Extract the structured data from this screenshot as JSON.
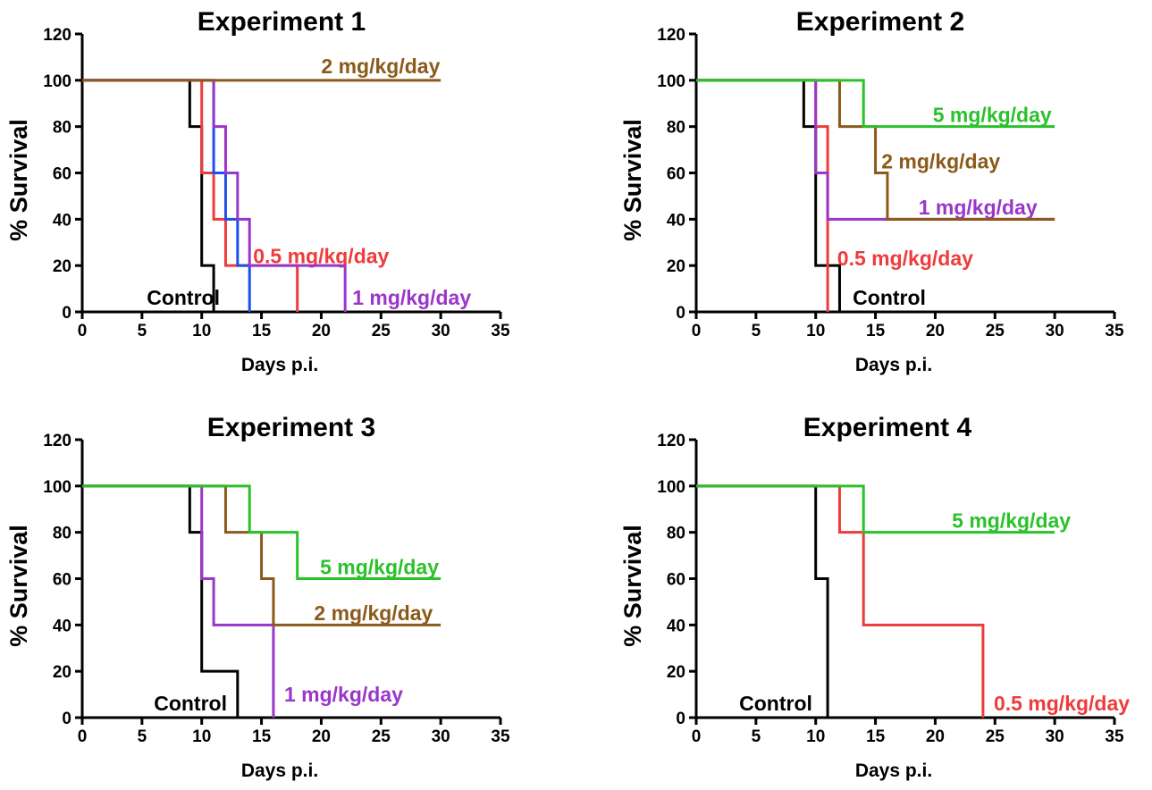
{
  "chart_data": [
    {
      "type": "line",
      "step": true,
      "title": "Experiment 1",
      "xlabel": "Days p.i.",
      "ylabel": "% Survival",
      "xlim": [
        0,
        35
      ],
      "ylim": [
        0,
        120
      ],
      "xticks": [
        0,
        5,
        10,
        15,
        20,
        25,
        30,
        35
      ],
      "yticks": [
        0,
        20,
        40,
        60,
        80,
        100,
        120
      ],
      "series": [
        {
          "name": "Control",
          "color": "#000000",
          "label_x": 5.4,
          "label_y": 3,
          "x": [
            0,
            9,
            10,
            11
          ],
          "y": [
            100,
            80,
            20,
            0
          ]
        },
        {
          "name": "0.5 mg/kg/day",
          "color": "#ee3b3b",
          "label_x": 14.3,
          "label_y": 21,
          "x": [
            0,
            10,
            11,
            12,
            18
          ],
          "y": [
            100,
            60,
            40,
            20,
            0
          ]
        },
        {
          "name": "",
          "color": "#1e4fe8",
          "x": [
            0,
            11,
            12,
            13,
            14
          ],
          "y": [
            100,
            60,
            40,
            20,
            0
          ]
        },
        {
          "name": "1 mg/kg/day",
          "color": "#9a36c9",
          "label_x": 22.6,
          "label_y": 3,
          "x": [
            0,
            11,
            12,
            13,
            14,
            22
          ],
          "y": [
            100,
            80,
            60,
            40,
            20,
            0
          ]
        },
        {
          "name": "2 mg/kg/day",
          "color": "#8b5a1a",
          "label_x": 20,
          "label_y": 103,
          "x": [
            0,
            30
          ],
          "y": [
            100,
            100
          ]
        }
      ]
    },
    {
      "type": "line",
      "step": true,
      "title": "Experiment 2",
      "xlabel": "Days p.i.",
      "ylabel": "% Survival",
      "xlim": [
        0,
        35
      ],
      "ylim": [
        0,
        120
      ],
      "xticks": [
        0,
        5,
        10,
        15,
        20,
        25,
        30,
        35
      ],
      "yticks": [
        0,
        20,
        40,
        60,
        80,
        100,
        120
      ],
      "series": [
        {
          "name": "Control",
          "color": "#000000",
          "label_x": 13.1,
          "label_y": 3,
          "x": [
            0,
            9,
            10,
            12
          ],
          "y": [
            100,
            80,
            20,
            0
          ]
        },
        {
          "name": "0.5 mg/kg/day",
          "color": "#ee3b3b",
          "label_x": 11.8,
          "label_y": 20,
          "x": [
            0,
            10,
            11
          ],
          "y": [
            100,
            80,
            0
          ]
        },
        {
          "name": "1 mg/kg/day",
          "color": "#9a36c9",
          "label_x": 18.6,
          "label_y": 42,
          "x": [
            0,
            10,
            11,
            30
          ],
          "y": [
            100,
            60,
            40,
            40
          ]
        },
        {
          "name": "2 mg/kg/day",
          "color": "#8b5a1a",
          "label_x": 15.5,
          "label_y": 62,
          "x": [
            0,
            12,
            15,
            16,
            30
          ],
          "y": [
            100,
            80,
            60,
            40,
            40
          ]
        },
        {
          "name": "5 mg/kg/day",
          "color": "#2bc12b",
          "label_x": 19.8,
          "label_y": 82,
          "x": [
            0,
            14,
            30
          ],
          "y": [
            100,
            80,
            80
          ]
        }
      ]
    },
    {
      "type": "line",
      "step": true,
      "title": "Experiment 3",
      "xlabel": "Days p.i.",
      "ylabel": "% Survival",
      "xlim": [
        0,
        35
      ],
      "ylim": [
        0,
        120
      ],
      "xticks": [
        0,
        5,
        10,
        15,
        20,
        25,
        30,
        35
      ],
      "yticks": [
        0,
        20,
        40,
        60,
        80,
        100,
        120
      ],
      "series": [
        {
          "name": "Control",
          "color": "#000000",
          "label_x": 6.0,
          "label_y": 3,
          "x": [
            0,
            9,
            10,
            13
          ],
          "y": [
            100,
            80,
            20,
            0
          ]
        },
        {
          "name": "1 mg/kg/day",
          "color": "#9a36c9",
          "label_x": 16.9,
          "label_y": 7,
          "x": [
            0,
            10,
            11,
            16
          ],
          "y": [
            100,
            60,
            40,
            0
          ]
        },
        {
          "name": "2 mg/kg/day",
          "color": "#8b5a1a",
          "label_x": 19.4,
          "label_y": 42,
          "x": [
            0,
            12,
            15,
            16,
            30
          ],
          "y": [
            100,
            80,
            60,
            40,
            40
          ]
        },
        {
          "name": "5 mg/kg/day",
          "color": "#2bc12b",
          "label_x": 19.9,
          "label_y": 62,
          "x": [
            0,
            14,
            18,
            30
          ],
          "y": [
            100,
            80,
            60,
            60
          ]
        }
      ]
    },
    {
      "type": "line",
      "step": true,
      "title": "Experiment 4",
      "xlabel": "Days p.i.",
      "ylabel": "% Survival",
      "xlim": [
        0,
        35
      ],
      "ylim": [
        0,
        120
      ],
      "xticks": [
        0,
        5,
        10,
        15,
        20,
        25,
        30,
        35
      ],
      "yticks": [
        0,
        20,
        40,
        60,
        80,
        100,
        120
      ],
      "series": [
        {
          "name": "Control",
          "color": "#000000",
          "label_x": 3.6,
          "label_y": 3,
          "x": [
            0,
            10,
            11
          ],
          "y": [
            100,
            60,
            0
          ]
        },
        {
          "name": "0.5 mg/kg/day",
          "color": "#ee3b3b",
          "label_x": 24.9,
          "label_y": 3,
          "x": [
            0,
            12,
            14,
            24
          ],
          "y": [
            100,
            80,
            40,
            0
          ]
        },
        {
          "name": "5 mg/kg/day",
          "color": "#2bc12b",
          "label_x": 21.4,
          "label_y": 82,
          "x": [
            0,
            14,
            30
          ],
          "y": [
            100,
            80,
            80
          ]
        }
      ]
    }
  ]
}
